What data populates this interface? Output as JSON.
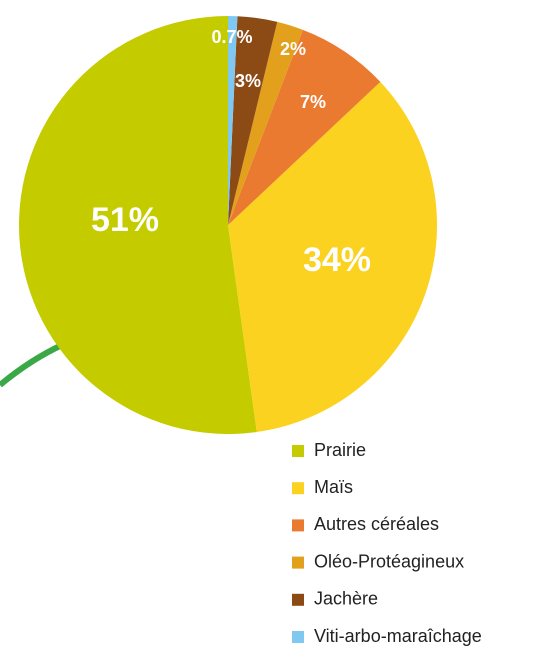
{
  "chart_data": {
    "type": "pie",
    "categories": [
      "Prairie",
      "Maïs",
      "Autres céréales",
      "Oléo-Protéagineux",
      "Jachère",
      "Viti-arbo-maraîchage"
    ],
    "values": [
      51,
      34,
      7,
      2,
      3,
      0.7
    ],
    "value_labels": [
      "51%",
      "34%",
      "7%",
      "2%",
      "3%",
      "0.7%"
    ],
    "colors": [
      "#c4cc00",
      "#fbd21f",
      "#ea7a30",
      "#e2a01c",
      "#8c4a14",
      "#7ec8f2"
    ],
    "legend": "bottom-right"
  }
}
